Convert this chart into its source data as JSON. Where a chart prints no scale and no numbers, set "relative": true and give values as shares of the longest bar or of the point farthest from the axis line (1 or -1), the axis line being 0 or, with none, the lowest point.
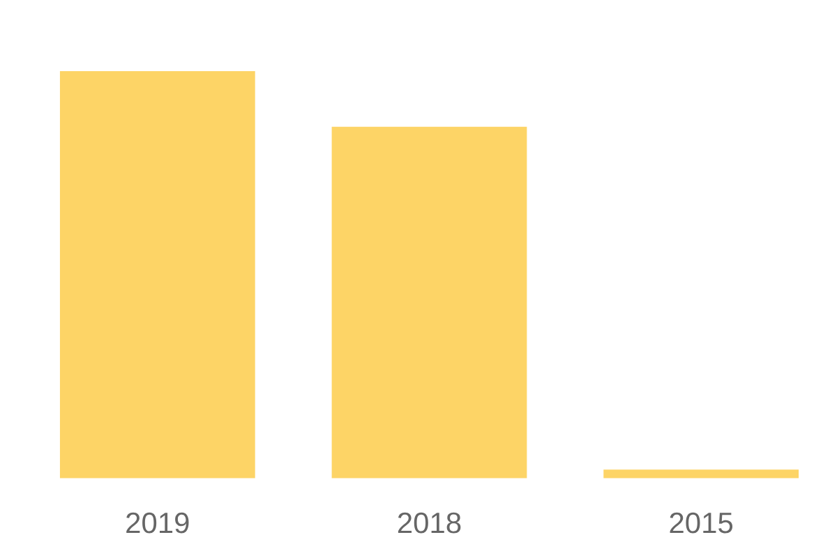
{
  "chart_data": {
    "type": "bar",
    "relative": true,
    "categories": [
      "2019",
      "2018",
      "2015"
    ],
    "values": [
      1,
      0.863,
      0.021
    ],
    "color": "#fdd466"
  }
}
